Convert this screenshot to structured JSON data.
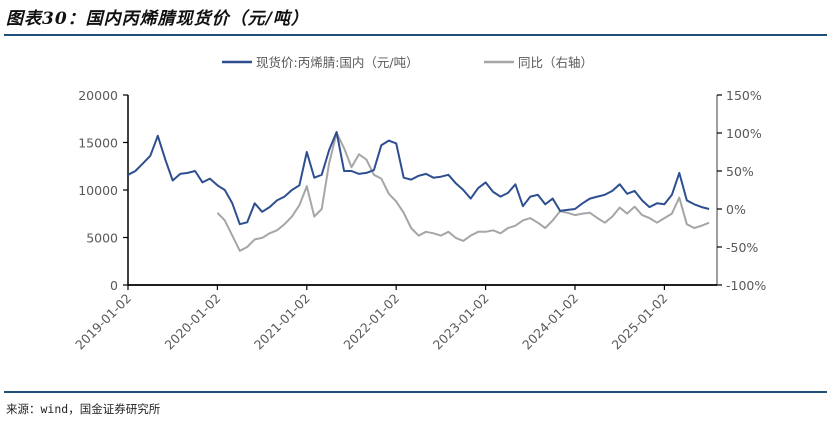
{
  "header": {
    "title": "图表30：国内丙烯腈现货价（元/吨）"
  },
  "footer": {
    "source": "来源：wind，国金证券研究所"
  },
  "colors": {
    "primary_series": "#2e4f8f",
    "secondary_series": "#a6a6a6",
    "rule": "#1f4e79",
    "axis": "#000000",
    "right_axis": "#7f7f7f",
    "tick_text": "#595959"
  },
  "legend": {
    "items": [
      {
        "label": "现货价:丙烯腈:国内（元/吨）",
        "color": "#2e4f8f"
      },
      {
        "label": "同比（右轴）",
        "color": "#a6a6a6"
      }
    ]
  },
  "chart_data": {
    "type": "line",
    "title": "国内丙烯腈现货价（元/吨）",
    "xlabel": "",
    "ylabel": "元/吨",
    "y2label": "同比",
    "ylim": [
      0,
      20000
    ],
    "y2lim": [
      -100,
      150
    ],
    "yticks": [
      0,
      5000,
      10000,
      15000,
      20000
    ],
    "y2ticks": [
      "-100%",
      "-50%",
      "0%",
      "50%",
      "100%",
      "150%"
    ],
    "xticks": [
      "2019-01-02",
      "2020-01-02",
      "2021-01-02",
      "2022-01-02",
      "2023-01-02",
      "2024-01-02",
      "2025-01-02"
    ],
    "legend_position": "top",
    "grid": false,
    "x": [
      "2019-01",
      "2019-02",
      "2019-03",
      "2019-04",
      "2019-05",
      "2019-06",
      "2019-07",
      "2019-08",
      "2019-09",
      "2019-10",
      "2019-11",
      "2019-12",
      "2020-01",
      "2020-02",
      "2020-03",
      "2020-04",
      "2020-05",
      "2020-06",
      "2020-07",
      "2020-08",
      "2020-09",
      "2020-10",
      "2020-11",
      "2020-12",
      "2021-01",
      "2021-02",
      "2021-03",
      "2021-04",
      "2021-05",
      "2021-06",
      "2021-07",
      "2021-08",
      "2021-09",
      "2021-10",
      "2021-11",
      "2021-12",
      "2022-01",
      "2022-02",
      "2022-03",
      "2022-04",
      "2022-05",
      "2022-06",
      "2022-07",
      "2022-08",
      "2022-09",
      "2022-10",
      "2022-11",
      "2022-12",
      "2023-01",
      "2023-02",
      "2023-03",
      "2023-04",
      "2023-05",
      "2023-06",
      "2023-07",
      "2023-08",
      "2023-09",
      "2023-10",
      "2023-11",
      "2023-12",
      "2024-01",
      "2024-02",
      "2024-03",
      "2024-04",
      "2024-05",
      "2024-06",
      "2024-07",
      "2024-08",
      "2024-09",
      "2024-10",
      "2024-11",
      "2024-12",
      "2025-01",
      "2025-02",
      "2025-03",
      "2025-04",
      "2025-05",
      "2025-06",
      "2025-07"
    ],
    "series": [
      {
        "name": "现货价:丙烯腈:国内（元/吨）",
        "axis": "left",
        "values": [
          11600,
          12000,
          12800,
          13600,
          15700,
          13200,
          11000,
          11700,
          11800,
          12000,
          10800,
          11200,
          10500,
          10000,
          8600,
          6400,
          6600,
          8600,
          7700,
          8200,
          8900,
          9300,
          10000,
          10500,
          14000,
          11300,
          11600,
          14200,
          16100,
          12000,
          12000,
          11700,
          11800,
          12100,
          14700,
          15200,
          14900,
          11300,
          11100,
          11500,
          11700,
          11300,
          11400,
          11600,
          10700,
          10000,
          9100,
          10200,
          10800,
          9800,
          9300,
          9700,
          10600,
          8300,
          9300,
          9500,
          8500,
          9100,
          7800,
          7900,
          8000,
          8600,
          9100,
          9300,
          9500,
          9900,
          10600,
          9600,
          9900,
          8900,
          8200,
          8600,
          8500,
          9500,
          11800,
          8900,
          8500,
          8200,
          8000
        ]
      },
      {
        "name": "同比（右轴）",
        "axis": "right",
        "values": [
          null,
          null,
          null,
          null,
          null,
          null,
          null,
          null,
          null,
          null,
          null,
          null,
          -5,
          -15,
          -35,
          -55,
          -50,
          -40,
          -38,
          -32,
          -28,
          -20,
          -10,
          5,
          30,
          -10,
          0,
          60,
          100,
          80,
          55,
          72,
          65,
          45,
          40,
          20,
          10,
          -5,
          -25,
          -35,
          -30,
          -32,
          -35,
          -30,
          -38,
          -42,
          -35,
          -30,
          -30,
          -28,
          -32,
          -25,
          -22,
          -15,
          -12,
          -18,
          -25,
          -15,
          -3,
          -5,
          -8,
          -6,
          -5,
          -12,
          -18,
          -10,
          2,
          -6,
          3,
          -8,
          -12,
          -18,
          -12,
          -6,
          15,
          -20,
          -25,
          -22,
          -18
        ]
      }
    ]
  }
}
